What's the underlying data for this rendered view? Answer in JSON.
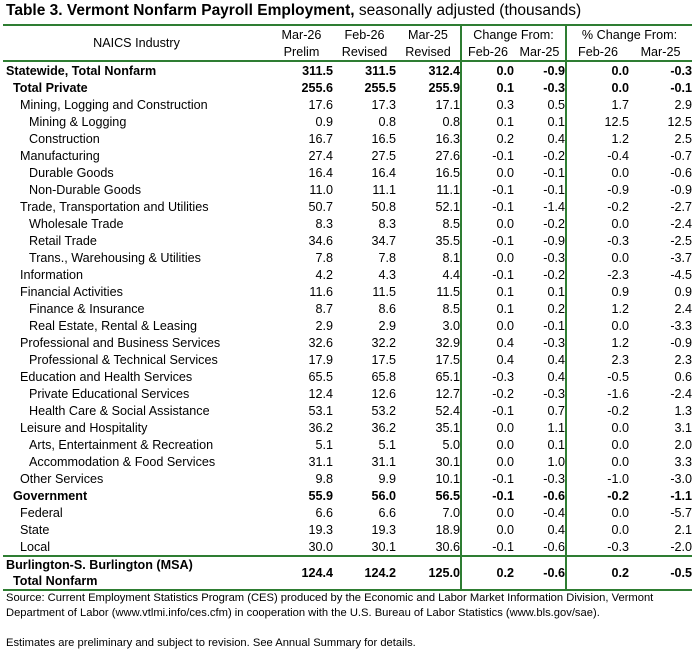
{
  "title": {
    "bold": "Table 3.  Vermont Nonfarm Payroll Employment,",
    "rest": " seasonally adjusted  (thousands)"
  },
  "header": {
    "industry": "NAICS Industry",
    "col_top": [
      "Mar-26",
      "Feb-26",
      "Mar-25"
    ],
    "col_bot": [
      "Prelim",
      "Revised",
      "Revised"
    ],
    "change_from": "Change From:",
    "pct_change_from": "% Change From:",
    "sub_cols": [
      "Feb-26",
      "Mar-25",
      "Feb-26",
      "Mar-25"
    ]
  },
  "rows": [
    {
      "label": "Statewide, Total Nonfarm",
      "indent": 0,
      "bold": true,
      "v": [
        "311.5",
        "311.5",
        "312.4",
        "0.0",
        "-0.9",
        "0.0",
        "-0.3"
      ]
    },
    {
      "label": "Total Private",
      "indent": 1,
      "bold": true,
      "v": [
        "255.6",
        "255.5",
        "255.9",
        "0.1",
        "-0.3",
        "0.0",
        "-0.1"
      ]
    },
    {
      "label": "Mining, Logging and Construction",
      "indent": 2,
      "bold": false,
      "v": [
        "17.6",
        "17.3",
        "17.1",
        "0.3",
        "0.5",
        "1.7",
        "2.9"
      ]
    },
    {
      "label": "Mining & Logging",
      "indent": 3,
      "bold": false,
      "v": [
        "0.9",
        "0.8",
        "0.8",
        "0.1",
        "0.1",
        "12.5",
        "12.5"
      ]
    },
    {
      "label": "Construction",
      "indent": 3,
      "bold": false,
      "v": [
        "16.7",
        "16.5",
        "16.3",
        "0.2",
        "0.4",
        "1.2",
        "2.5"
      ]
    },
    {
      "label": "Manufacturing",
      "indent": 2,
      "bold": false,
      "v": [
        "27.4",
        "27.5",
        "27.6",
        "-0.1",
        "-0.2",
        "-0.4",
        "-0.7"
      ]
    },
    {
      "label": "Durable Goods",
      "indent": 3,
      "bold": false,
      "v": [
        "16.4",
        "16.4",
        "16.5",
        "0.0",
        "-0.1",
        "0.0",
        "-0.6"
      ]
    },
    {
      "label": "Non-Durable Goods",
      "indent": 3,
      "bold": false,
      "v": [
        "11.0",
        "11.1",
        "11.1",
        "-0.1",
        "-0.1",
        "-0.9",
        "-0.9"
      ]
    },
    {
      "label": "Trade, Transportation and Utilities",
      "indent": 2,
      "bold": false,
      "v": [
        "50.7",
        "50.8",
        "52.1",
        "-0.1",
        "-1.4",
        "-0.2",
        "-2.7"
      ]
    },
    {
      "label": "Wholesale Trade",
      "indent": 3,
      "bold": false,
      "v": [
        "8.3",
        "8.3",
        "8.5",
        "0.0",
        "-0.2",
        "0.0",
        "-2.4"
      ]
    },
    {
      "label": "Retail Trade",
      "indent": 3,
      "bold": false,
      "v": [
        "34.6",
        "34.7",
        "35.5",
        "-0.1",
        "-0.9",
        "-0.3",
        "-2.5"
      ]
    },
    {
      "label": "Trans., Warehousing & Utilities",
      "indent": 3,
      "bold": false,
      "v": [
        "7.8",
        "7.8",
        "8.1",
        "0.0",
        "-0.3",
        "0.0",
        "-3.7"
      ]
    },
    {
      "label": "Information",
      "indent": 2,
      "bold": false,
      "v": [
        "4.2",
        "4.3",
        "4.4",
        "-0.1",
        "-0.2",
        "-2.3",
        "-4.5"
      ]
    },
    {
      "label": "Financial Activities",
      "indent": 2,
      "bold": false,
      "v": [
        "11.6",
        "11.5",
        "11.5",
        "0.1",
        "0.1",
        "0.9",
        "0.9"
      ]
    },
    {
      "label": "Finance & Insurance",
      "indent": 3,
      "bold": false,
      "v": [
        "8.7",
        "8.6",
        "8.5",
        "0.1",
        "0.2",
        "1.2",
        "2.4"
      ]
    },
    {
      "label": "Real Estate, Rental & Leasing",
      "indent": 3,
      "bold": false,
      "v": [
        "2.9",
        "2.9",
        "3.0",
        "0.0",
        "-0.1",
        "0.0",
        "-3.3"
      ]
    },
    {
      "label": "Professional and Business Services",
      "indent": 2,
      "bold": false,
      "v": [
        "32.6",
        "32.2",
        "32.9",
        "0.4",
        "-0.3",
        "1.2",
        "-0.9"
      ]
    },
    {
      "label": "Professional & Technical Services",
      "indent": 3,
      "bold": false,
      "v": [
        "17.9",
        "17.5",
        "17.5",
        "0.4",
        "0.4",
        "2.3",
        "2.3"
      ]
    },
    {
      "label": "Education and Health Services",
      "indent": 2,
      "bold": false,
      "v": [
        "65.5",
        "65.8",
        "65.1",
        "-0.3",
        "0.4",
        "-0.5",
        "0.6"
      ]
    },
    {
      "label": "Private Educational Services",
      "indent": 3,
      "bold": false,
      "v": [
        "12.4",
        "12.6",
        "12.7",
        "-0.2",
        "-0.3",
        "-1.6",
        "-2.4"
      ]
    },
    {
      "label": "Health Care & Social Assistance",
      "indent": 3,
      "bold": false,
      "v": [
        "53.1",
        "53.2",
        "52.4",
        "-0.1",
        "0.7",
        "-0.2",
        "1.3"
      ]
    },
    {
      "label": "Leisure and Hospitality",
      "indent": 2,
      "bold": false,
      "v": [
        "36.2",
        "36.2",
        "35.1",
        "0.0",
        "1.1",
        "0.0",
        "3.1"
      ]
    },
    {
      "label": "Arts, Entertainment & Recreation",
      "indent": 3,
      "bold": false,
      "v": [
        "5.1",
        "5.1",
        "5.0",
        "0.0",
        "0.1",
        "0.0",
        "2.0"
      ]
    },
    {
      "label": "Accommodation & Food Services",
      "indent": 3,
      "bold": false,
      "v": [
        "31.1",
        "31.1",
        "30.1",
        "0.0",
        "1.0",
        "0.0",
        "3.3"
      ]
    },
    {
      "label": "Other Services",
      "indent": 2,
      "bold": false,
      "v": [
        "9.8",
        "9.9",
        "10.1",
        "-0.1",
        "-0.3",
        "-1.0",
        "-3.0"
      ]
    },
    {
      "label": "Government",
      "indent": 1,
      "bold": true,
      "v": [
        "55.9",
        "56.0",
        "56.5",
        "-0.1",
        "-0.6",
        "-0.2",
        "-1.1"
      ]
    },
    {
      "label": "Federal",
      "indent": 2,
      "bold": false,
      "v": [
        "6.6",
        "6.6",
        "7.0",
        "0.0",
        "-0.4",
        "0.0",
        "-5.7"
      ]
    },
    {
      "label": "State",
      "indent": 2,
      "bold": false,
      "v": [
        "19.3",
        "19.3",
        "18.9",
        "0.0",
        "0.4",
        "0.0",
        "2.1"
      ]
    },
    {
      "label": "Local",
      "indent": 2,
      "bold": false,
      "v": [
        "30.0",
        "30.1",
        "30.6",
        "-0.1",
        "-0.6",
        "-0.3",
        "-2.0"
      ]
    }
  ],
  "msa": {
    "label1": "Burlington-S. Burlington (MSA)",
    "label2": "Total Nonfarm",
    "v": [
      "124.4",
      "124.2",
      "125.0",
      "0.2",
      "-0.6",
      "0.2",
      "-0.5"
    ]
  },
  "source": "Source: Current Employment Statistics Program (CES) produced by the Economic and Labor Market Information Division, Vermont Department of Labor (www.vtlmi.info/ces.cfm) in cooperation with the U.S. Bureau of Labor Statistics (www.bls.gov/sae).",
  "note": "Estimates are preliminary and subject to revision. See Annual Summary for details.",
  "colors": {
    "rule": "#2e7d32"
  }
}
